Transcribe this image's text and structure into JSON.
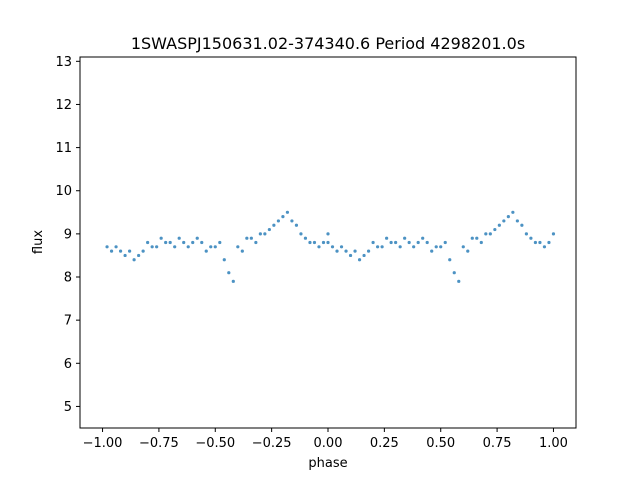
{
  "chart_data": {
    "type": "scatter",
    "title": "1SWASPJ150631.02-374340.6 Period 4298201.0s",
    "xlabel": "phase",
    "ylabel": "flux",
    "xlim": [
      -1.1,
      1.1
    ],
    "ylim": [
      4.5,
      13.1
    ],
    "xticks": [
      -1.0,
      -0.75,
      -0.5,
      -0.25,
      0.0,
      0.25,
      0.5,
      0.75,
      1.0
    ],
    "xtick_labels": [
      "−1.00",
      "−0.75",
      "−0.50",
      "−0.25",
      "0.00",
      "0.25",
      "0.50",
      "0.75",
      "1.00"
    ],
    "yticks": [
      5,
      6,
      7,
      8,
      9,
      10,
      11,
      12,
      13
    ],
    "ytick_labels": [
      "5",
      "6",
      "7",
      "8",
      "9",
      "10",
      "11",
      "12",
      "13"
    ],
    "grid": false,
    "marker_color": "#1f77b4",
    "mirrored": true,
    "series": [
      {
        "x": [
          0.0,
          0.02,
          0.04,
          0.06,
          0.08,
          0.1,
          0.12,
          0.14,
          0.16,
          0.18,
          0.2,
          0.22,
          0.24,
          0.26,
          0.28,
          0.3,
          0.32,
          0.34,
          0.36,
          0.38,
          0.4,
          0.42,
          0.44,
          0.46,
          0.48,
          0.5,
          0.52,
          0.54,
          0.56,
          0.58,
          0.6,
          0.62,
          0.64,
          0.66,
          0.68,
          0.7,
          0.72,
          0.74,
          0.76,
          0.78,
          0.8,
          0.82,
          0.84,
          0.86,
          0.88,
          0.9,
          0.92,
          0.94,
          0.96,
          0.98,
          1.0
        ],
        "y": [
          8.8,
          8.7,
          8.6,
          8.7,
          8.6,
          8.5,
          8.6,
          8.4,
          8.5,
          8.6,
          8.8,
          8.7,
          8.7,
          8.9,
          8.8,
          8.8,
          8.7,
          8.9,
          8.8,
          8.7,
          8.8,
          8.9,
          8.8,
          8.6,
          8.7,
          8.7,
          8.8,
          8.4,
          8.1,
          7.9,
          8.7,
          8.6,
          8.9,
          8.9,
          8.8,
          9.0,
          9.0,
          9.1,
          9.2,
          9.3,
          9.4,
          9.5,
          9.3,
          9.2,
          9.0,
          8.9,
          8.8,
          8.8,
          8.7,
          8.8,
          9.0
        ]
      }
    ]
  }
}
